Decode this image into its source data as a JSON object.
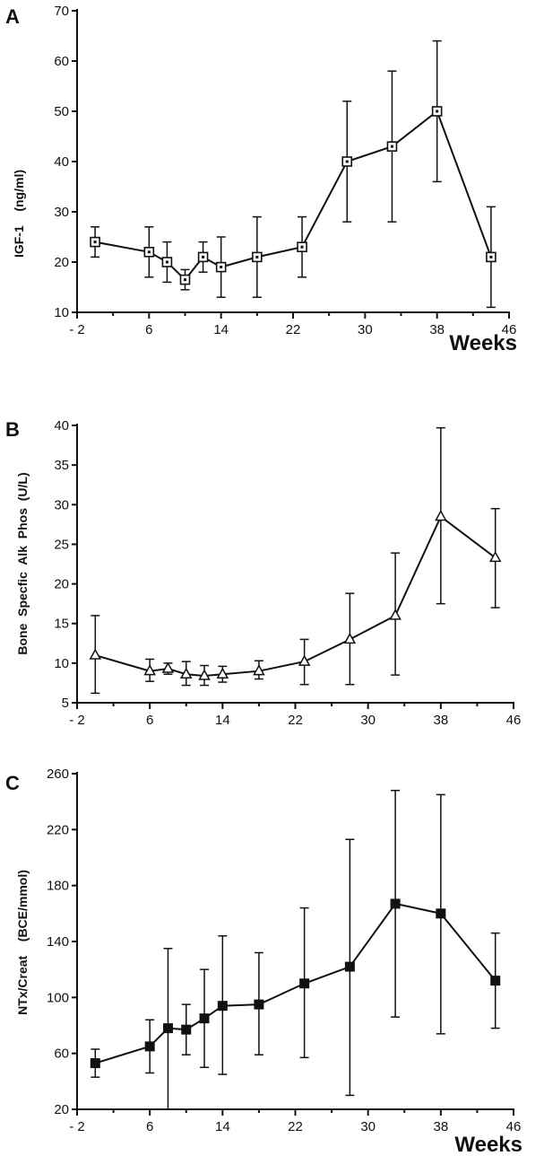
{
  "chart_data": [
    {
      "type": "line",
      "panel_label": "A",
      "ylabel": "IGF-1    (ng/ml)",
      "xlabel": "Weeks",
      "marker": "open-square",
      "x_ticks": [
        "- 2",
        "6",
        "14",
        "22",
        "30",
        "38",
        "46"
      ],
      "y_ticks": [
        "10",
        "20",
        "30",
        "40",
        "50",
        "60",
        "70"
      ],
      "xlim": [
        -2,
        46
      ],
      "ylim": [
        10,
        70
      ],
      "x": [
        0,
        6,
        8,
        10,
        12,
        14,
        18,
        23,
        28,
        33,
        38,
        44
      ],
      "y": [
        24,
        22,
        20,
        16.5,
        21,
        19,
        21,
        23,
        40,
        43,
        50,
        21
      ],
      "err_low": [
        21,
        17,
        16,
        14.5,
        18,
        13,
        13,
        17,
        28,
        28,
        36,
        11
      ],
      "err_high": [
        27,
        27,
        24,
        18.5,
        24,
        25,
        29,
        29,
        52,
        58,
        64,
        31
      ]
    },
    {
      "type": "line",
      "panel_label": "B",
      "ylabel": "Bone  Specfic  Alk  Phos  (U/L)",
      "xlabel": "",
      "marker": "open-triangle",
      "x_ticks": [
        "- 2",
        "6",
        "14",
        "22",
        "30",
        "38",
        "46"
      ],
      "y_ticks": [
        "5",
        "10",
        "15",
        "20",
        "25",
        "30",
        "35",
        "40"
      ],
      "xlim": [
        -2,
        46
      ],
      "ylim": [
        5,
        40
      ],
      "x": [
        0,
        6,
        8,
        10,
        12,
        14,
        18,
        23,
        28,
        33,
        38,
        44
      ],
      "y": [
        11,
        9,
        9.3,
        8.6,
        8.4,
        8.6,
        9,
        10.2,
        13,
        16,
        28.5,
        23.3
      ],
      "err_low": [
        6.2,
        7.7,
        8.6,
        7.2,
        7.2,
        7.6,
        8,
        7.3,
        7.3,
        8.5,
        17.5,
        17
      ],
      "err_high": [
        16,
        10.5,
        10,
        10.2,
        9.7,
        9.6,
        10.3,
        13,
        18.8,
        23.9,
        39.7,
        29.5
      ]
    },
    {
      "type": "line",
      "panel_label": "C",
      "ylabel": "NTx/Creat    (BCE/mmol)",
      "xlabel": "Weeks",
      "marker": "filled-square",
      "x_ticks": [
        "- 2",
        "6",
        "14",
        "22",
        "30",
        "38",
        "46"
      ],
      "y_ticks": [
        "20",
        "60",
        "100",
        "140",
        "180",
        "220",
        "260"
      ],
      "xlim": [
        -2,
        46
      ],
      "ylim": [
        20,
        260
      ],
      "x": [
        0,
        6,
        8,
        10,
        12,
        14,
        18,
        23,
        28,
        33,
        38,
        44
      ],
      "y": [
        53,
        65,
        78,
        77,
        85,
        94,
        95,
        110,
        122,
        167,
        160,
        112
      ],
      "err_low": [
        43,
        46,
        20,
        59,
        50,
        45,
        59,
        57,
        30,
        86,
        74,
        78
      ],
      "err_high": [
        63,
        84,
        135,
        95,
        120,
        144,
        132,
        164,
        213,
        248,
        245,
        146
      ]
    }
  ]
}
